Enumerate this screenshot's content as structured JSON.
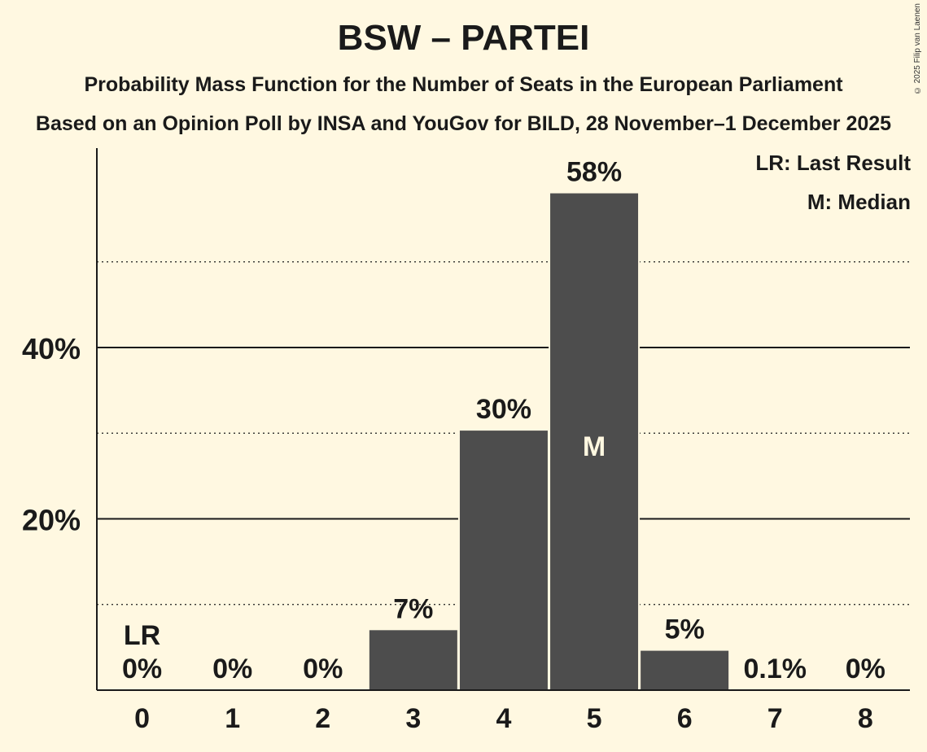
{
  "chart_data": {
    "type": "bar",
    "title": "BSW – PARTEI",
    "subtitle": "Probability Mass Function for the Number of Seats in the European Parliament",
    "subtitle2": "Based on an Opinion Poll by INSA and YouGov for BILD, 28 November–1 December 2025",
    "copyright": "© 2025 Filip van Laenen",
    "categories": [
      "0",
      "1",
      "2",
      "3",
      "4",
      "5",
      "6",
      "7",
      "8"
    ],
    "values": [
      0,
      0,
      0,
      7,
      30.3,
      58,
      4.6,
      0.1,
      0
    ],
    "value_labels": [
      "0%",
      "0%",
      "0%",
      "7%",
      "30%",
      "58%",
      "5%",
      "0.1%",
      "0%"
    ],
    "ylim": [
      0,
      63
    ],
    "y_ticks_major": [
      {
        "value": 20,
        "label": "20%"
      },
      {
        "value": 40,
        "label": "40%"
      }
    ],
    "y_ticks_minor": [
      10,
      30,
      50
    ],
    "last_result": {
      "seat": "0",
      "label": "LR"
    },
    "median": {
      "seat": "5",
      "label": "M"
    },
    "legend": {
      "lr": "LR: Last Result",
      "m": "M: Median"
    },
    "colors": {
      "bar": "#4d4d4d",
      "background": "#fff8e1",
      "text": "#1a1a1a",
      "median_text": "#fff8e1"
    }
  }
}
